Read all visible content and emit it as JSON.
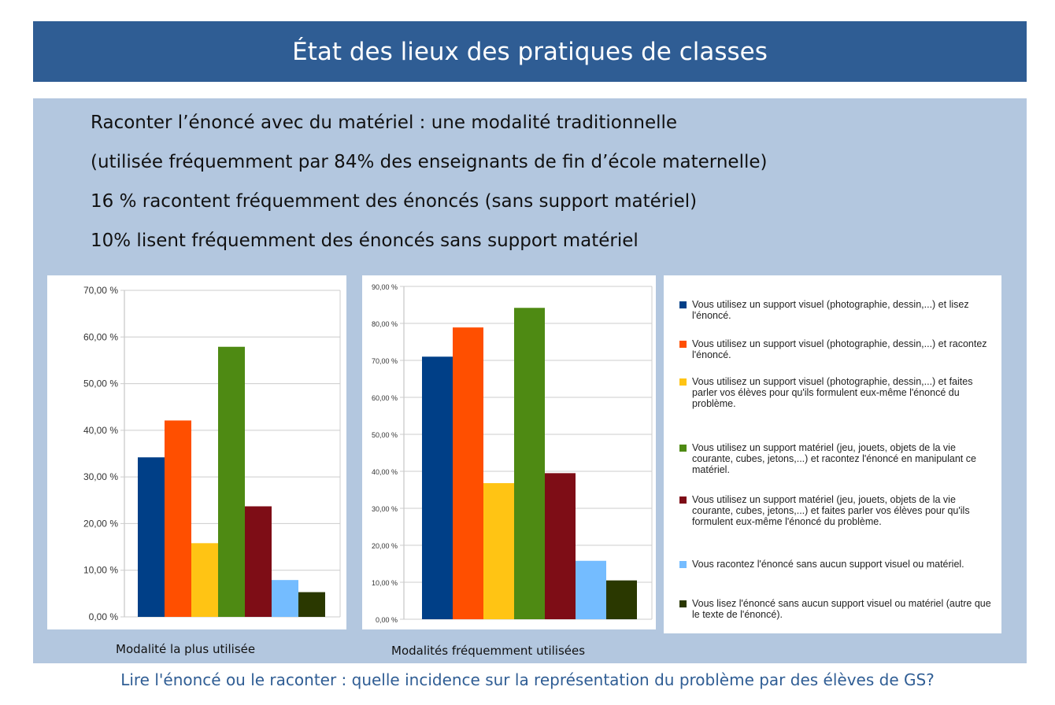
{
  "title": "État des lieux des pratiques de classes",
  "lines": [
    "Raconter l’énoncé avec du matériel : une modalité traditionnelle",
    "(utilisée fréquemment par 84% des enseignants de fin d’école maternelle)",
    "16 % racontent fréquemment des énoncés (sans support matériel)",
    "10% lisent fréquemment des énoncés sans support matériel"
  ],
  "footer": "Lire l'énoncé ou le raconter : quelle incidence sur la représentation du problème par des élèves de GS?",
  "colors": [
    "#003f87",
    "#ff4f00",
    "#ffc414",
    "#4e8a13",
    "#7e0d16",
    "#74bcff",
    "#2a3800"
  ],
  "legend": [
    "Vous utilisez un support visuel (photographie, dessin,...) et lisez l'énoncé.",
    "Vous utilisez un support visuel (photographie, dessin,...) et racontez l'énoncé.",
    "Vous utilisez un support visuel (photographie, dessin,...) et faites parler vos élèves pour qu'ils formulent eux-même l'énoncé du problème.",
    "Vous utilisez un support matériel (jeu, jouets, objets de la vie courante, cubes, jetons,...) et racontez l'énoncé en manipulant ce matériel.",
    "Vous utilisez un support matériel (jeu, jouets, objets de la vie courante, cubes, jetons,...) et faites parler vos élèves pour qu'ils formulent eux-même l'énoncé du problème.",
    "Vous racontez l'énoncé sans aucun support visuel ou matériel.",
    "Vous lisez l'énoncé sans aucun support visuel ou matériel (autre que le texte de l'énoncé)."
  ],
  "chart_data": [
    {
      "type": "bar",
      "title": "Modalité la plus utilisée",
      "ylim": [
        0,
        70
      ],
      "step": 10,
      "ticks": [
        "0,00 %",
        "10,00 %",
        "20,00 %",
        "30,00 %",
        "40,00 %",
        "50,00 %",
        "60,00 %",
        "70,00 %"
      ],
      "values": [
        34.2,
        42.1,
        15.8,
        57.9,
        23.7,
        7.9,
        5.3
      ]
    },
    {
      "type": "bar",
      "title": "Modalités fréquemment utilisées",
      "ylim": [
        0,
        90
      ],
      "step": 10,
      "ticks": [
        "0,00 %",
        "10,00 %",
        "20,00 %",
        "30,00 %",
        "40,00 %",
        "50,00 %",
        "60,00 %",
        "70,00 %",
        "80,00 %",
        "90,00 %"
      ],
      "values": [
        71.0,
        78.9,
        36.8,
        84.2,
        39.5,
        15.8,
        10.5
      ]
    }
  ]
}
